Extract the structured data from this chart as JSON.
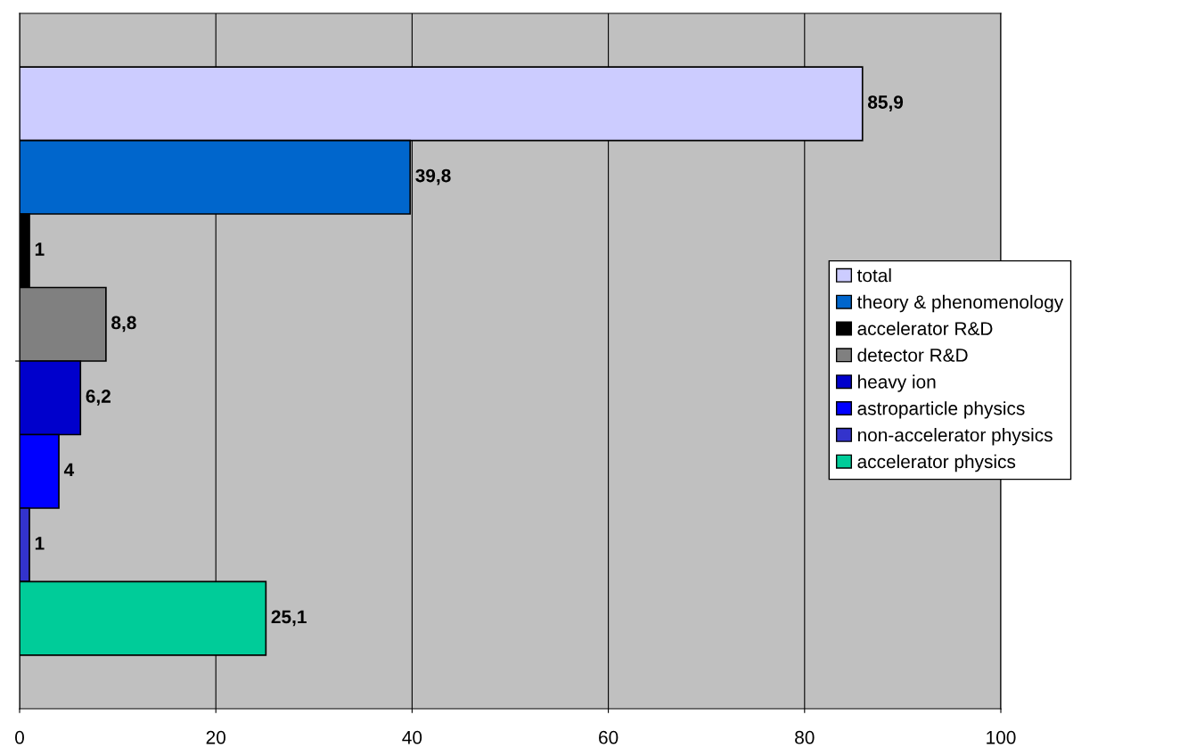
{
  "chart_data": {
    "type": "bar",
    "orientation": "horizontal",
    "categories": [
      null
    ],
    "series": [
      {
        "name": "total",
        "color": "#ccccff",
        "values": [
          85.9
        ],
        "value_labels": [
          "85,9"
        ]
      },
      {
        "name": "theory & phenomenology",
        "color": "#0066cc",
        "values": [
          39.8
        ],
        "value_labels": [
          "39,8"
        ]
      },
      {
        "name": "accelerator R&D",
        "color": "#000000",
        "values": [
          1
        ],
        "value_labels": [
          "1"
        ]
      },
      {
        "name": "detector R&D",
        "color": "#808080",
        "values": [
          8.8
        ],
        "value_labels": [
          "8,8"
        ]
      },
      {
        "name": "heavy ion",
        "color": "#0000cc",
        "values": [
          6.2
        ],
        "value_labels": [
          "6,2"
        ]
      },
      {
        "name": "astroparticle physics",
        "color": "#0000ff",
        "values": [
          4
        ],
        "value_labels": [
          "4"
        ]
      },
      {
        "name": "non-accelerator physics",
        "color": "#3333cc",
        "values": [
          1
        ],
        "value_labels": [
          "1"
        ]
      },
      {
        "name": "accelerator physics",
        "color": "#00cc99",
        "values": [
          25.1
        ],
        "value_labels": [
          "25,1"
        ]
      }
    ],
    "xlim": [
      0,
      100
    ],
    "xticks": [
      0,
      20,
      40,
      60,
      80,
      100
    ],
    "grid": "x",
    "legend": "right"
  }
}
